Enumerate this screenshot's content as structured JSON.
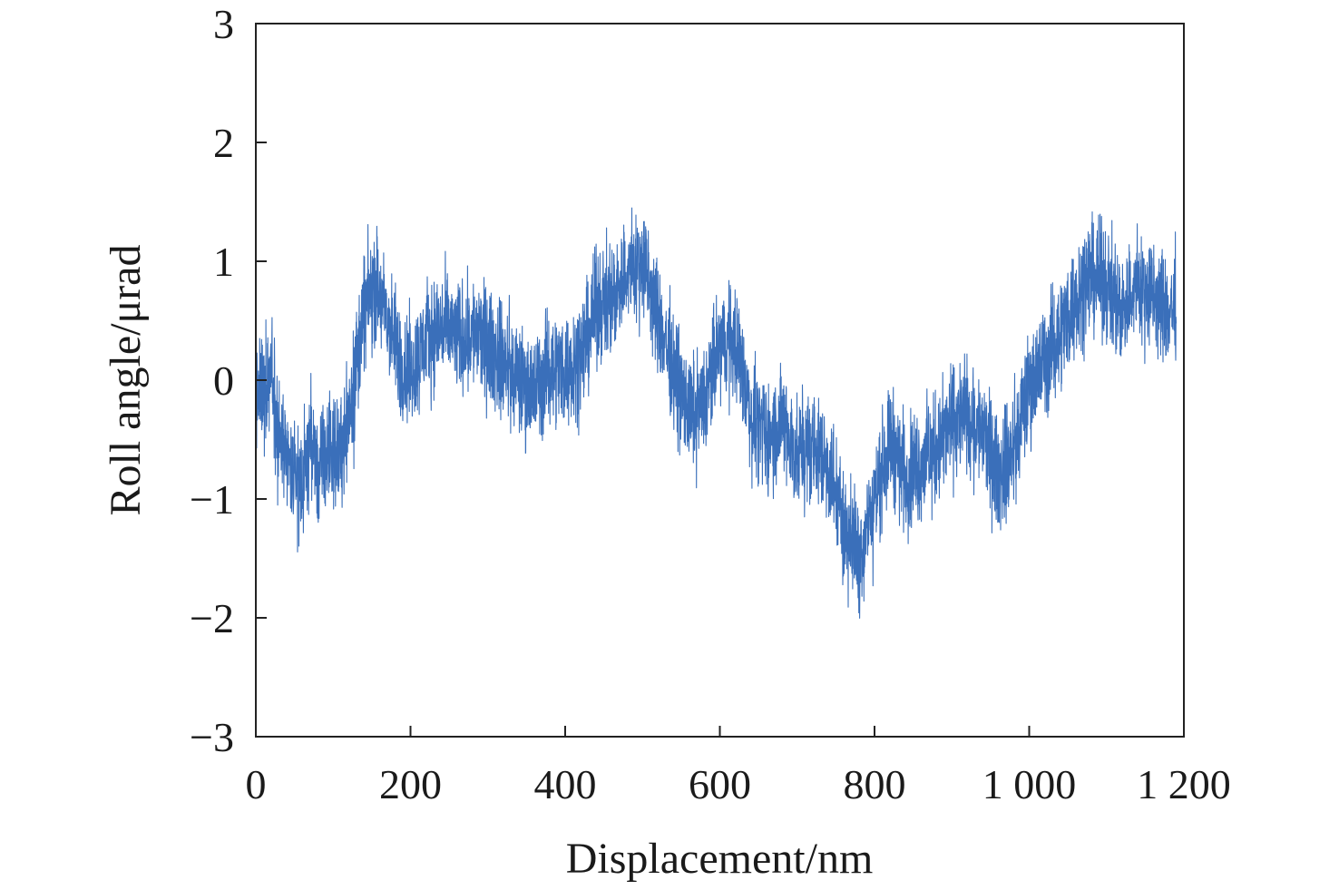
{
  "chart_data": {
    "type": "line",
    "title": "",
    "xlabel": "Displacement/nm",
    "ylabel": "Roll angle/μrad",
    "xlim": [
      0,
      1200
    ],
    "ylim": [
      -3,
      3
    ],
    "grid": false,
    "legend": "none",
    "x_ticks": [
      {
        "value": 0,
        "label": "0"
      },
      {
        "value": 200,
        "label": "200"
      },
      {
        "value": 400,
        "label": "400"
      },
      {
        "value": 600,
        "label": "600"
      },
      {
        "value": 800,
        "label": "800"
      },
      {
        "value": 1000,
        "label": "1 000"
      },
      {
        "value": 1200,
        "label": "1 200"
      }
    ],
    "y_ticks": [
      {
        "value": 3,
        "label": "3"
      },
      {
        "value": 2,
        "label": "2"
      },
      {
        "value": 1,
        "label": "1"
      },
      {
        "value": 0,
        "label": "0"
      },
      {
        "value": -1,
        "label": "−1"
      },
      {
        "value": -2,
        "label": "−2"
      },
      {
        "value": -3,
        "label": "−3"
      }
    ],
    "series": [
      {
        "color": "#3a6fba",
        "x_end": 1190,
        "noise_halfwidth": 0.45,
        "x": [
          0,
          10,
          20,
          30,
          40,
          50,
          60,
          70,
          80,
          95,
          110,
          125,
          140,
          155,
          170,
          190,
          205,
          220,
          240,
          260,
          280,
          300,
          320,
          340,
          360,
          380,
          400,
          420,
          440,
          460,
          480,
          500,
          520,
          540,
          560,
          580,
          600,
          620,
          640,
          660,
          680,
          700,
          720,
          740,
          760,
          780,
          800,
          820,
          840,
          860,
          880,
          900,
          920,
          940,
          960,
          980,
          1000,
          1020,
          1040,
          1060,
          1080,
          1100,
          1120,
          1140,
          1160,
          1180,
          1190
        ],
        "y": [
          -0.2,
          -0.05,
          0.15,
          -0.5,
          -0.7,
          -0.8,
          -0.9,
          -0.5,
          -0.8,
          -0.6,
          -0.6,
          -0.1,
          0.6,
          0.8,
          0.5,
          0.1,
          0.1,
          0.35,
          0.45,
          0.35,
          0.4,
          0.3,
          0.15,
          0.0,
          -0.1,
          0.1,
          0.1,
          0.2,
          0.6,
          0.7,
          0.9,
          1.0,
          0.5,
          0.1,
          -0.3,
          -0.2,
          0.3,
          0.35,
          -0.3,
          -0.5,
          -0.35,
          -0.65,
          -0.55,
          -0.7,
          -1.2,
          -1.5,
          -1.0,
          -0.5,
          -0.8,
          -0.7,
          -0.6,
          -0.35,
          -0.3,
          -0.45,
          -0.8,
          -0.6,
          -0.05,
          0.15,
          0.4,
          0.7,
          0.9,
          0.8,
          0.6,
          0.8,
          0.7,
          0.55,
          0.65
        ]
      }
    ]
  }
}
